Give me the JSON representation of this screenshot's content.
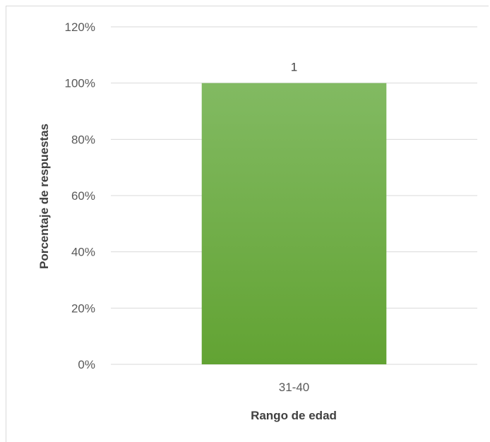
{
  "chart_data": {
    "type": "bar",
    "title": "",
    "xlabel": "Rango de edad",
    "ylabel": "Porcentaje de respuestas",
    "categories": [
      "31-40"
    ],
    "values": [
      100
    ],
    "data_labels": [
      "1"
    ],
    "ylim": [
      0,
      120
    ],
    "yticks": [
      "0%",
      "20%",
      "40%",
      "60%",
      "80%",
      "100%",
      "120%"
    ],
    "grid": true,
    "legend": "none",
    "colors": {
      "bar_top": "#82ba62",
      "bar_bottom": "#62a333",
      "grid": "#d9d9d9",
      "text": "#595959"
    }
  }
}
